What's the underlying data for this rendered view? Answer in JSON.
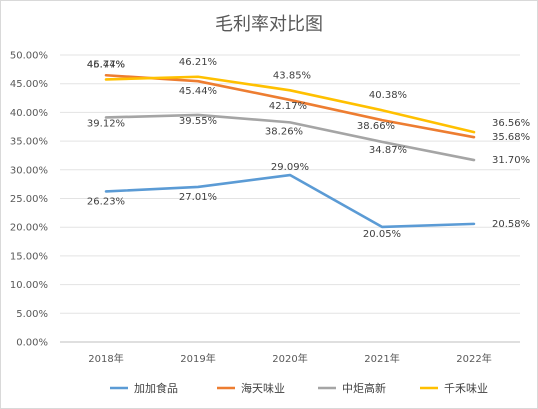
{
  "chart_data": {
    "type": "line",
    "title": "毛利率对比图",
    "categories": [
      "2018年",
      "2019年",
      "2020年",
      "2021年",
      "2022年"
    ],
    "ylim": [
      0,
      50
    ],
    "y_ticks": [
      "0.00%",
      "5.00%",
      "10.00%",
      "15.00%",
      "20.00%",
      "25.00%",
      "30.00%",
      "35.00%",
      "40.00%",
      "45.00%",
      "50.00%"
    ],
    "grid": true,
    "legend_position": "bottom",
    "series": [
      {
        "name": "加加食品",
        "color": "#5b9bd5",
        "values": [
          26.23,
          27.01,
          29.09,
          20.05,
          20.58
        ],
        "labels": [
          "26.23%",
          "27.01%",
          "29.09%",
          "20.05%",
          "20.58%"
        ]
      },
      {
        "name": "海天味业",
        "color": "#ed7d31",
        "values": [
          46.47,
          45.44,
          42.17,
          38.66,
          35.68
        ],
        "labels": [
          "46.47%",
          "45.44%",
          "42.17%",
          "38.66%",
          "35.68%"
        ]
      },
      {
        "name": "中炬高新",
        "color": "#a5a5a5",
        "values": [
          39.12,
          39.55,
          38.26,
          34.87,
          31.7
        ],
        "labels": [
          "39.12%",
          "39.55%",
          "38.26%",
          "34.87%",
          "31.70%"
        ]
      },
      {
        "name": "千禾味业",
        "color": "#ffc000",
        "values": [
          45.74,
          46.21,
          43.85,
          40.38,
          36.56
        ],
        "labels": [
          "45.74%",
          "46.21%",
          "43.85%",
          "40.38%",
          "36.56%"
        ]
      }
    ]
  }
}
